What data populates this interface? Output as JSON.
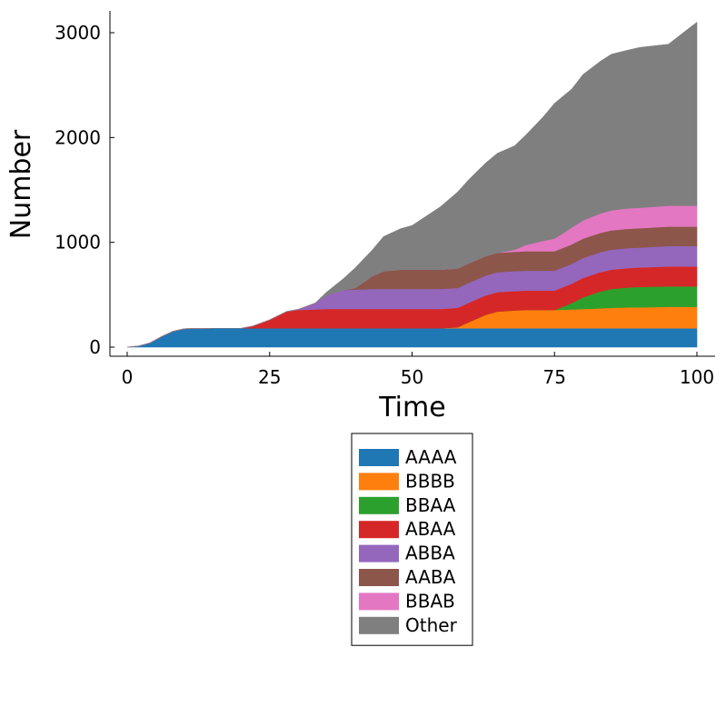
{
  "chart_data": {
    "type": "area",
    "stacked": true,
    "xlabel": "Time",
    "ylabel": "Number",
    "xlim": [
      0,
      100
    ],
    "ylim": [
      -100,
      3200
    ],
    "xticks": [
      0,
      25,
      50,
      75,
      100
    ],
    "yticks": [
      0,
      1000,
      2000,
      3000
    ],
    "grid": false,
    "legend_position": "below-center",
    "x": [
      0,
      2,
      4,
      6,
      8,
      10,
      15,
      20,
      22,
      25,
      28,
      30,
      33,
      35,
      38,
      40,
      43,
      45,
      48,
      50,
      55,
      58,
      60,
      63,
      65,
      68,
      70,
      73,
      75,
      78,
      80,
      83,
      85,
      88,
      90,
      95,
      100
    ],
    "series": [
      {
        "name": "AAAA",
        "color": "#1f77b4",
        "values": [
          0,
          10,
          40,
          100,
          150,
          175,
          180,
          180,
          180,
          180,
          180,
          180,
          180,
          180,
          180,
          180,
          180,
          180,
          180,
          180,
          180,
          180,
          180,
          180,
          180,
          180,
          180,
          180,
          180,
          180,
          180,
          180,
          180,
          180,
          180,
          180,
          180
        ]
      },
      {
        "name": "BBBB",
        "color": "#ff7f0e",
        "values": [
          0,
          0,
          0,
          0,
          0,
          0,
          0,
          0,
          0,
          0,
          0,
          0,
          0,
          0,
          0,
          0,
          0,
          0,
          0,
          0,
          0,
          10,
          60,
          130,
          160,
          170,
          175,
          175,
          175,
          180,
          185,
          190,
          195,
          200,
          200,
          205,
          205
        ]
      },
      {
        "name": "BBAA",
        "color": "#2ca02c",
        "values": [
          0,
          0,
          0,
          0,
          0,
          0,
          0,
          0,
          0,
          0,
          0,
          0,
          0,
          0,
          0,
          0,
          0,
          0,
          0,
          0,
          0,
          0,
          0,
          0,
          0,
          0,
          0,
          0,
          0,
          60,
          110,
          160,
          180,
          190,
          195,
          195,
          195
        ]
      },
      {
        "name": "ABAA",
        "color": "#d62728",
        "values": [
          0,
          0,
          0,
          0,
          0,
          0,
          0,
          0,
          20,
          80,
          160,
          175,
          180,
          185,
          185,
          185,
          185,
          185,
          185,
          185,
          185,
          185,
          185,
          185,
          185,
          185,
          185,
          185,
          185,
          185,
          185,
          185,
          185,
          185,
          185,
          190,
          190
        ]
      },
      {
        "name": "ABBA",
        "color": "#9467bd",
        "values": [
          0,
          0,
          0,
          0,
          0,
          0,
          0,
          0,
          0,
          0,
          0,
          5,
          60,
          130,
          180,
          185,
          190,
          190,
          190,
          190,
          190,
          190,
          190,
          190,
          190,
          190,
          190,
          190,
          190,
          190,
          190,
          190,
          190,
          190,
          190,
          195,
          195
        ]
      },
      {
        "name": "AABA",
        "color": "#8c564b",
        "values": [
          0,
          0,
          0,
          0,
          0,
          0,
          0,
          0,
          0,
          0,
          0,
          0,
          0,
          0,
          0,
          15,
          120,
          170,
          185,
          185,
          185,
          185,
          185,
          185,
          185,
          185,
          185,
          185,
          185,
          185,
          185,
          185,
          185,
          185,
          185,
          185,
          185
        ]
      },
      {
        "name": "BBAB",
        "color": "#e377c2",
        "values": [
          0,
          0,
          0,
          0,
          0,
          0,
          0,
          0,
          0,
          0,
          0,
          0,
          0,
          0,
          0,
          0,
          0,
          0,
          0,
          0,
          0,
          0,
          0,
          0,
          0,
          20,
          60,
          100,
          120,
          160,
          175,
          185,
          190,
          195,
          195,
          200,
          200
        ]
      },
      {
        "name": "Other",
        "color": "#7f7f7f",
        "values": [
          0,
          0,
          0,
          0,
          0,
          0,
          0,
          0,
          0,
          0,
          0,
          0,
          0,
          30,
          110,
          190,
          250,
          330,
          390,
          420,
          600,
          730,
          800,
          890,
          950,
          990,
          1050,
          1180,
          1290,
          1320,
          1390,
          1450,
          1490,
          1510,
          1530,
          1540,
          1750
        ]
      }
    ]
  }
}
